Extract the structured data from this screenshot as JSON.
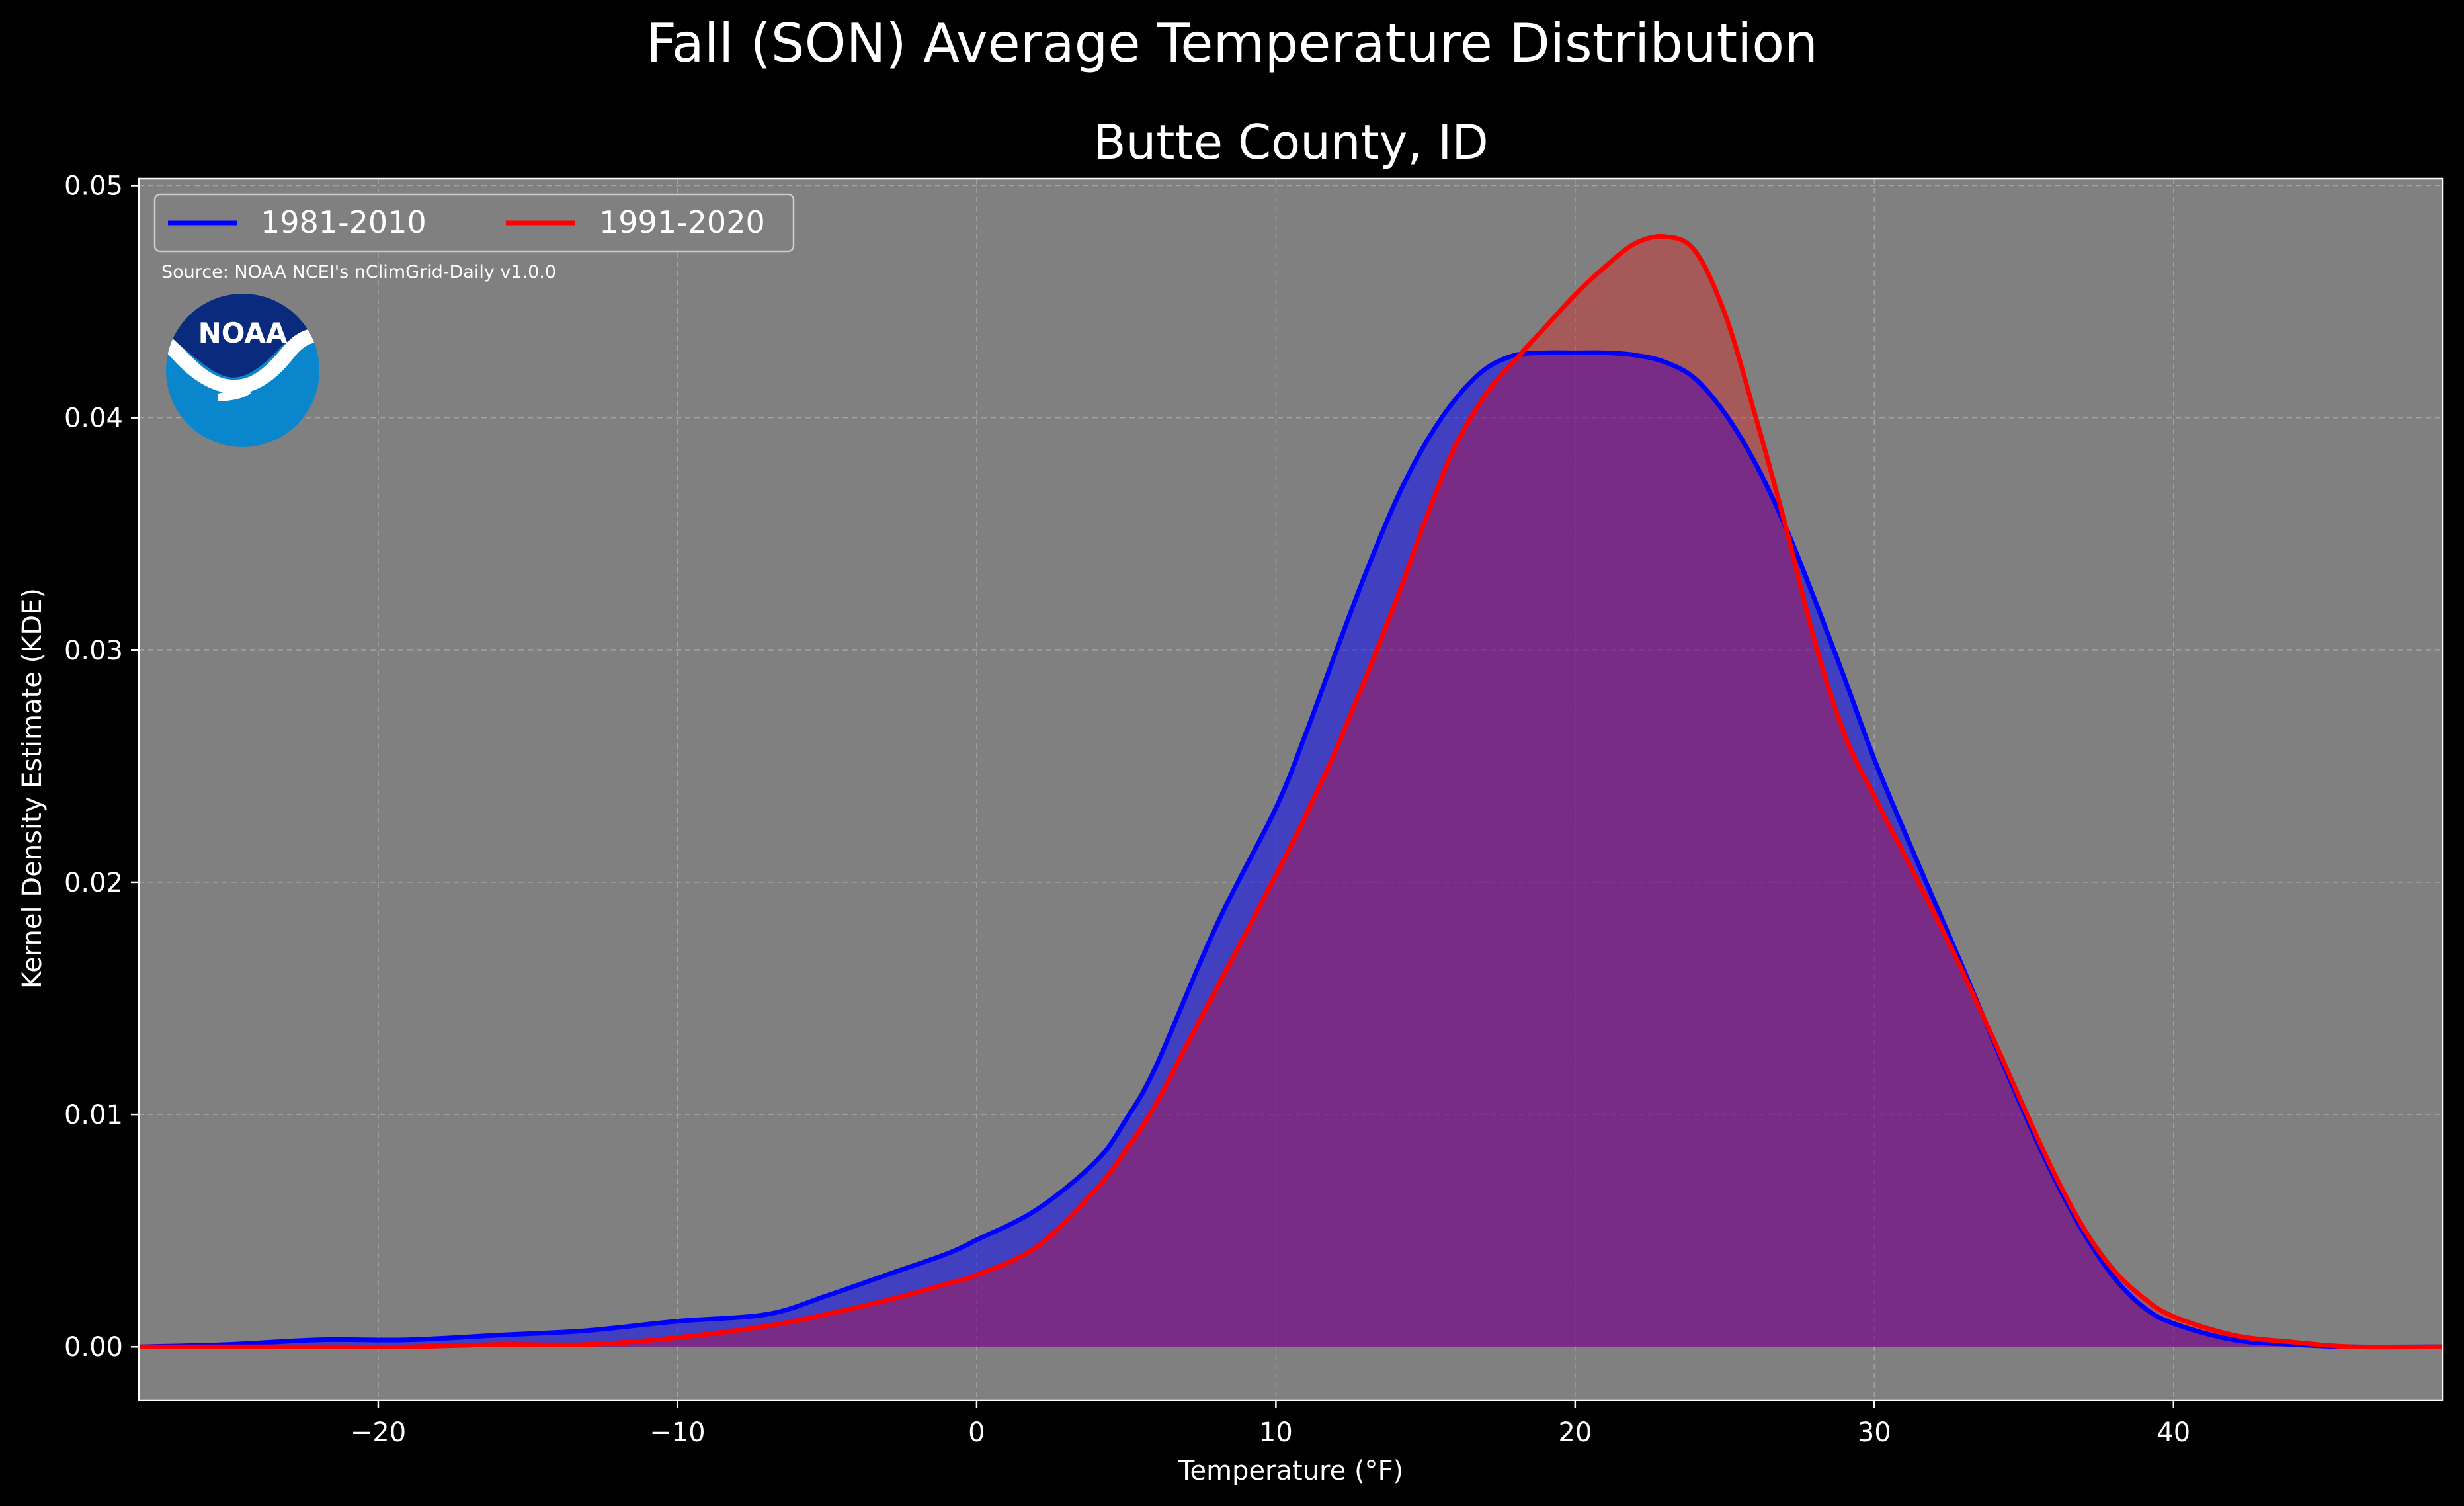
{
  "suptitle": "Fall (SON) Average Temperature Distribution",
  "chart_data": {
    "type": "area",
    "title": "Butte County, ID",
    "xlabel": "Temperature (°F)",
    "ylabel": "Kernel Density Estimate (KDE)",
    "xlim": [
      -28,
      49
    ],
    "ylim": [
      -0.0023,
      0.0503
    ],
    "xticks": [
      -20,
      -10,
      0,
      10,
      20,
      30,
      40
    ],
    "xtick_labels": [
      "−20",
      "−10",
      "0",
      "10",
      "20",
      "30",
      "40"
    ],
    "yticks": [
      0.0,
      0.01,
      0.02,
      0.03,
      0.04,
      0.05
    ],
    "ytick_labels": [
      "0.00",
      "0.01",
      "0.02",
      "0.03",
      "0.04",
      "0.05"
    ],
    "grid": true,
    "legend": "top-left",
    "source_note": "Source: NOAA NCEI's nClimGrid-Daily v1.0.0",
    "logo_text": "NOAA",
    "colors": {
      "figure_bg": "#000000",
      "axes_bg": "#808080",
      "grid": "#b3b3b3",
      "text": "#ffffff",
      "noaa_dark": "#0a2a7d",
      "noaa_light": "#0a86cc"
    },
    "series": [
      {
        "name": "1981-2010",
        "color": "#0000ff",
        "fill": "rgba(0,0,255,0.5)",
        "x": [
          -28,
          -25,
          -22,
          -19,
          -16,
          -13,
          -10,
          -7,
          -5,
          -3,
          -1,
          0,
          2,
          4,
          5,
          6,
          8,
          10,
          11,
          12,
          13,
          14,
          15,
          16,
          17,
          18,
          19,
          20,
          21,
          22,
          23,
          24,
          25,
          26,
          27,
          28,
          29,
          30,
          31,
          32,
          33,
          34,
          35,
          36,
          37,
          38,
          39,
          40,
          42,
          44,
          46,
          49
        ],
        "y": [
          0,
          0.0001,
          0.0003,
          0.0003,
          0.0005,
          0.0007,
          0.0011,
          0.0014,
          0.0022,
          0.0031,
          0.004,
          0.0046,
          0.0059,
          0.008,
          0.0098,
          0.0121,
          0.0181,
          0.0232,
          0.0264,
          0.0299,
          0.0333,
          0.0364,
          0.0389,
          0.0408,
          0.0421,
          0.0427,
          0.0428,
          0.0428,
          0.0428,
          0.0427,
          0.0424,
          0.0417,
          0.0402,
          0.0381,
          0.0354,
          0.0322,
          0.0288,
          0.0253,
          0.0222,
          0.0192,
          0.0162,
          0.0131,
          0.0101,
          0.0073,
          0.0049,
          0.003,
          0.0017,
          0.001,
          0.0003,
          0.0001,
          0,
          0
        ]
      },
      {
        "name": "1991-2020",
        "color": "#ff0000",
        "fill": "rgba(255,0,0,0.3)",
        "x": [
          -28,
          -25,
          -22,
          -19,
          -16,
          -13,
          -10,
          -7,
          -5,
          -3,
          -1,
          0,
          2,
          4,
          5,
          6,
          8,
          10,
          11,
          12,
          13,
          14,
          15,
          16,
          17,
          18,
          19,
          20,
          21,
          22,
          23,
          24,
          25,
          26,
          27,
          28,
          29,
          30,
          31,
          32,
          33,
          34,
          35,
          36,
          37,
          38,
          39,
          40,
          42,
          44,
          46,
          49
        ],
        "y": [
          0,
          0,
          0,
          0,
          0.0001,
          0.0001,
          0.0004,
          0.0009,
          0.0014,
          0.002,
          0.0027,
          0.0031,
          0.0043,
          0.0068,
          0.0085,
          0.0105,
          0.0154,
          0.0203,
          0.0229,
          0.0257,
          0.0288,
          0.0321,
          0.0356,
          0.0388,
          0.041,
          0.0425,
          0.0439,
          0.0453,
          0.0465,
          0.0475,
          0.0478,
          0.0472,
          0.0445,
          0.0402,
          0.0355,
          0.0304,
          0.0264,
          0.0237,
          0.0212,
          0.0187,
          0.016,
          0.0132,
          0.0103,
          0.0075,
          0.0051,
          0.0033,
          0.0021,
          0.0013,
          0.0005,
          0.0002,
          0,
          0
        ]
      }
    ]
  }
}
